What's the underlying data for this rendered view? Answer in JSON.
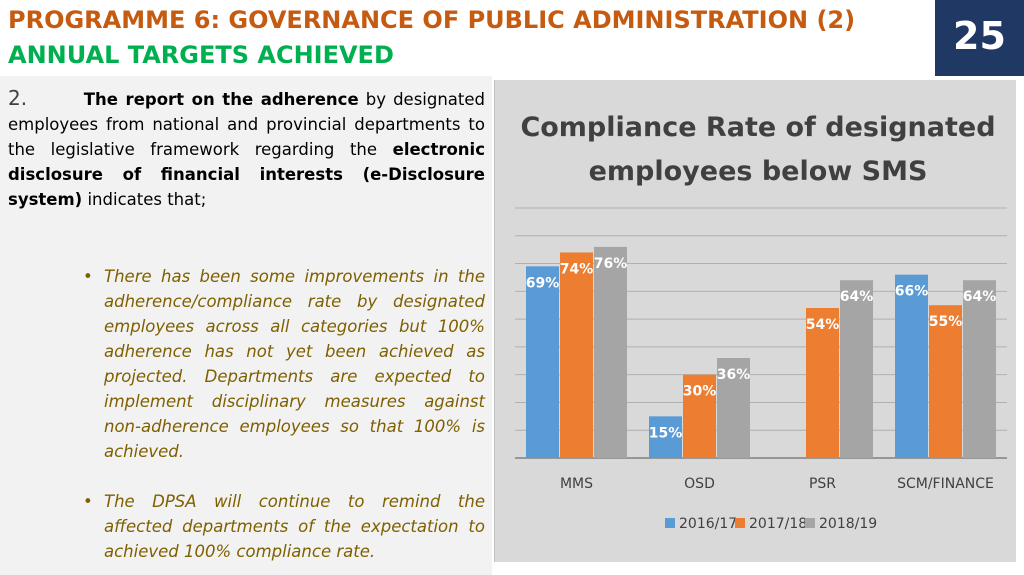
{
  "header": {
    "title_line1": "PROGRAMME 6: GOVERNANCE OF PUBLIC ADMINISTRATION (2)",
    "title_line2": "ANNUAL TARGETS ACHIEVED",
    "page_number": "25"
  },
  "body": {
    "point_number": "2.",
    "point_bold1": "The report on the adherence",
    "point_text1": " by designated employees from national and provincial departments to the legislative framework regarding the ",
    "point_bold2": "electronic disclosure of financial interests (e-Disclosure system)",
    "point_text2": " indicates that;",
    "bullets": [
      "There has been some improvements in the adherence/compliance rate by designated employees across all categories but 100% adherence has not yet been achieved as projected. Departments are expected to implement disciplinary measures against non-adherence employees so that 100% is achieved.",
      "The DPSA will continue to remind the affected departments of the expectation to achieved 100% compliance rate."
    ],
    "bullet_symbol": "•"
  },
  "colors": {
    "title_orange": "#c55a11",
    "title_green": "#00b050",
    "page_box": "#1f3864",
    "bullet_text": "#7f6000"
  },
  "chart_data": {
    "type": "bar",
    "title_line1": "Compliance Rate of designated",
    "title_line2": "employees below SMS",
    "categories": [
      "MMS",
      "OSD",
      "PSR",
      "SCM/FINANCE"
    ],
    "series": [
      {
        "name": "2016/17",
        "color": "#5b9bd5",
        "values": [
          69,
          15,
          null,
          66
        ],
        "labels": [
          "69%",
          "15%",
          "",
          "66%"
        ]
      },
      {
        "name": "2017/18",
        "color": "#ed7d31",
        "values": [
          74,
          30,
          54,
          55
        ],
        "labels": [
          "74%",
          "30%",
          "54%",
          "55%"
        ]
      },
      {
        "name": "2018/19",
        "color": "#a5a5a5",
        "values": [
          76,
          36,
          64,
          64
        ],
        "labels": [
          "76%",
          "36%",
          "64%",
          "64%"
        ]
      }
    ],
    "ylim": [
      0,
      90
    ],
    "grid": true,
    "legend": "bottom"
  }
}
